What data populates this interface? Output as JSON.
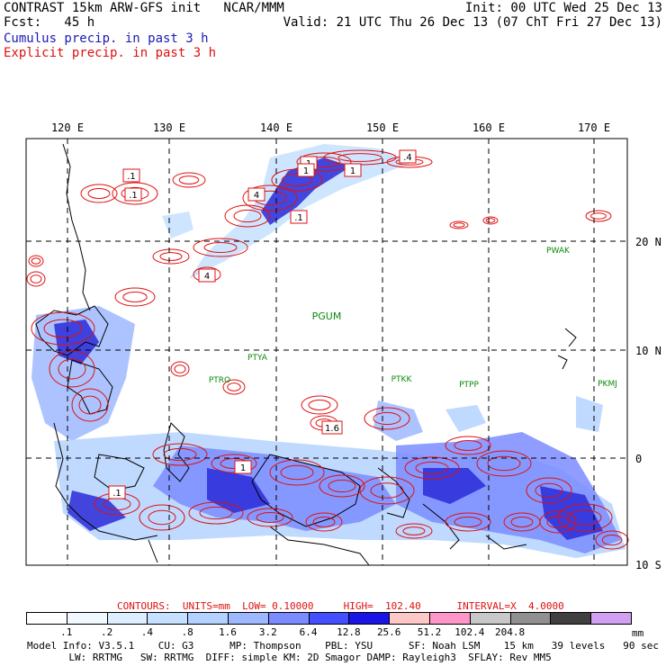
{
  "header": {
    "line1_left": "CONTRAST 15km ARW-GFS init   NCAR/MMM",
    "line1_right": "Init: 00 UTC Wed 25 Dec 13",
    "line2_left": "Fcst:   45 h",
    "line2_right": "Valid: 21 UTC Thu 26 Dec 13 (07 ChT Fri 27 Dec 13)",
    "line3": "Cumulus precip. in past 3 h",
    "line4": "Explicit precip. in past 3 h",
    "line3_color": "#1a1ab4",
    "line4_color": "#e01010"
  },
  "map": {
    "lon_labels": [
      "120 E",
      "130 E",
      "140 E",
      "150 E",
      "160 E",
      "170 E"
    ],
    "lat_labels": [
      "20 N",
      "10 N",
      "0",
      "10 S"
    ],
    "stations": [
      "PGUM",
      "PWAK",
      "PTYA",
      "PTRO",
      "PTKK",
      "PTPP",
      "PKMJ"
    ],
    "contour_labels": [
      ".1",
      ".1",
      "4",
      "4",
      ".1",
      ".4",
      "1",
      "1",
      ".1",
      "1.6",
      "1",
      "1"
    ],
    "station_color": "#0a8a0a",
    "contour_color": "#e01010",
    "cumulus_color": "#2a2ad8"
  },
  "footer": {
    "contours_line": "CONTOURS:  UNITS=mm  LOW= 0.10000     HIGH=  102.40      INTERVAL=X  4.0000",
    "colorbar_ticks": [
      ".1",
      ".2",
      ".4",
      ".8",
      "1.6",
      "3.2",
      "6.4",
      "12.8",
      "25.6",
      "51.2",
      "102.4",
      "204.8"
    ],
    "colorbar_unit": "mm",
    "colorbar_colors": [
      "#ffffff",
      "#f2f8ff",
      "#dceeff",
      "#c6e0ff",
      "#b4d2ff",
      "#9eb8ff",
      "#7a8cff",
      "#4450ff",
      "#1a14e6",
      "#ffc8c8",
      "#ff96c8",
      "#c8c8c8",
      "#909090",
      "#404040",
      "#d2a0f0"
    ],
    "model_info_1": "Model Info: V3.5.1    CU: G3      MP: Thompson    PBL: YSU      SF: Noah LSM    15 km   39 levels   90 sec",
    "model_info_2": "       LW: RRTMG   SW: RRTMG  DIFF: simple KM: 2D Smagor DAMP: Rayleigh3  SFLAY: Rev MM5"
  }
}
